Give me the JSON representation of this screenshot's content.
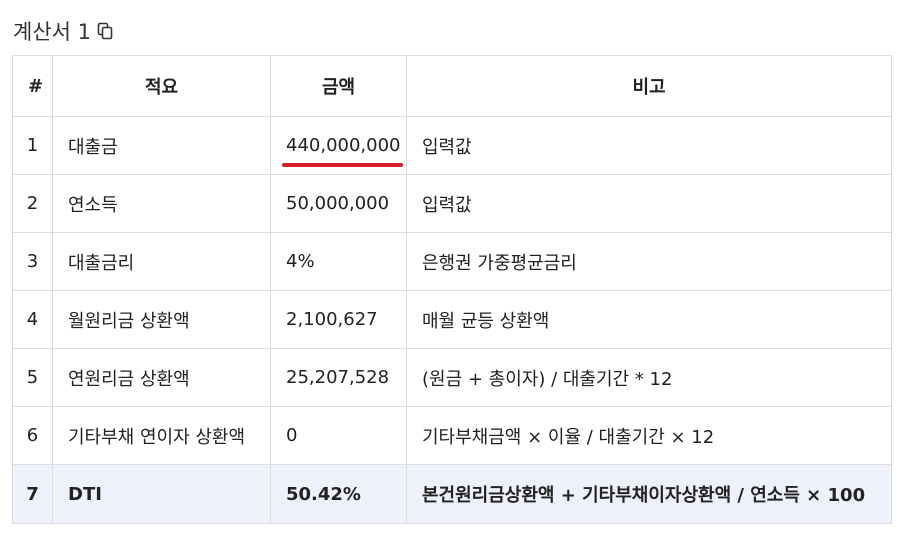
{
  "header": {
    "title": "계산서 1",
    "copy_icon": "copy-icon"
  },
  "table": {
    "columns": [
      "#",
      "적요",
      "금액",
      "비고"
    ],
    "rows": [
      {
        "no": "1",
        "item": "대출금",
        "amount": "440,000,000",
        "note": "입력값"
      },
      {
        "no": "2",
        "item": "연소득",
        "amount": "50,000,000",
        "note": "입력값"
      },
      {
        "no": "3",
        "item": "대출금리",
        "amount": "4%",
        "note": "은행권 가중평균금리"
      },
      {
        "no": "4",
        "item": "월원리금 상환액",
        "amount": "2,100,627",
        "note": "매월 균등 상환액"
      },
      {
        "no": "5",
        "item": "연원리금 상환액",
        "amount": "25,207,528",
        "note": "(원금 + 총이자) / 대출기간 * 12"
      },
      {
        "no": "6",
        "item": "기타부채 연이자 상환액",
        "amount": "0",
        "note": "기타부채금액 × 이율 / 대출기간 × 12"
      },
      {
        "no": "7",
        "item": "DTI",
        "amount": "50.42%",
        "note": "본건원리금상환액 + 기타부채이자상환액 / 연소득 × 100"
      }
    ]
  },
  "colors": {
    "total_row_bg": "#eef0fc",
    "underline": "#d81e2c",
    "border": "#dcdcdc"
  }
}
